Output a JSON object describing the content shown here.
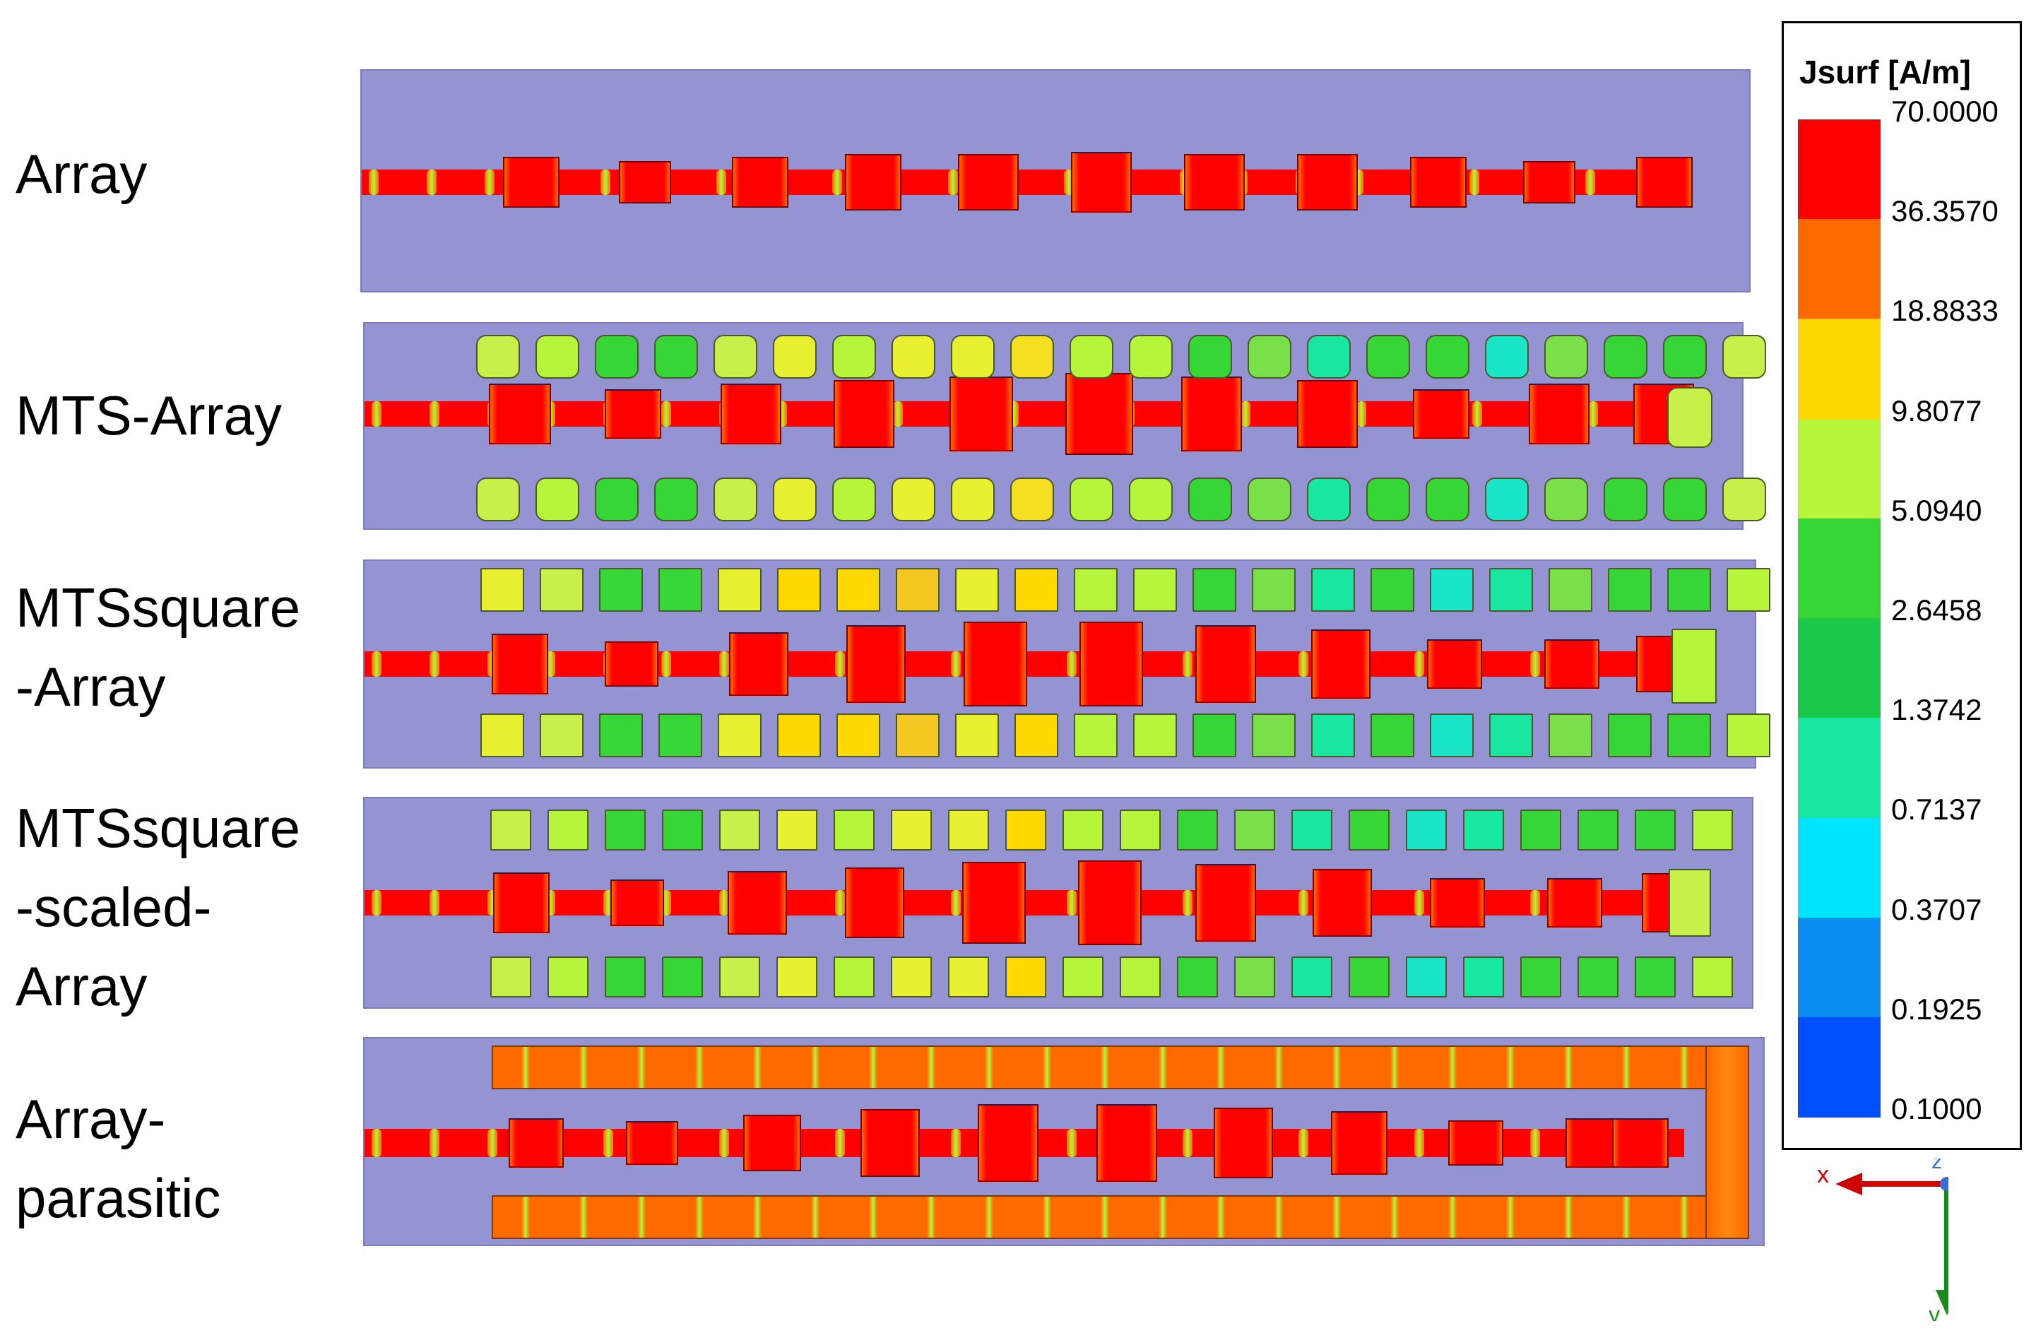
{
  "rows": [
    {
      "label": "Array"
    },
    {
      "label": "MTS-Array"
    },
    {
      "label": "MTSsquare\n-Array"
    },
    {
      "label": "MTSsquare\n-scaled-\nArray"
    },
    {
      "label": "Array-\nparasitic"
    }
  ],
  "legend": {
    "title": "Jsurf [A/m]",
    "ticks": [
      "70.0000",
      "36.3570",
      "18.8833",
      "9.8077",
      "5.0940",
      "2.6458",
      "1.3742",
      "0.7137",
      "0.3707",
      "0.1925",
      "0.1000"
    ],
    "band_colors": [
      "#ff0000",
      "#ff6a00",
      "#ffd800",
      "#b6f53a",
      "#35d635",
      "#1ac84a",
      "#19e6a0",
      "#00e5ff",
      "#0a8cf0",
      "#0050ff",
      "#0000ff"
    ]
  },
  "axes": {
    "x_label": "x",
    "y_label": "y",
    "z_label": "z"
  },
  "colors": {
    "substrate": "#9494d2",
    "current_high": "#ff0000",
    "current_mid": "#ff6a00",
    "current_yellow": "#ffd800",
    "current_lgreen": "#b6f53a",
    "current_green": "#35d635",
    "current_cyan": "#19e6c8"
  }
}
